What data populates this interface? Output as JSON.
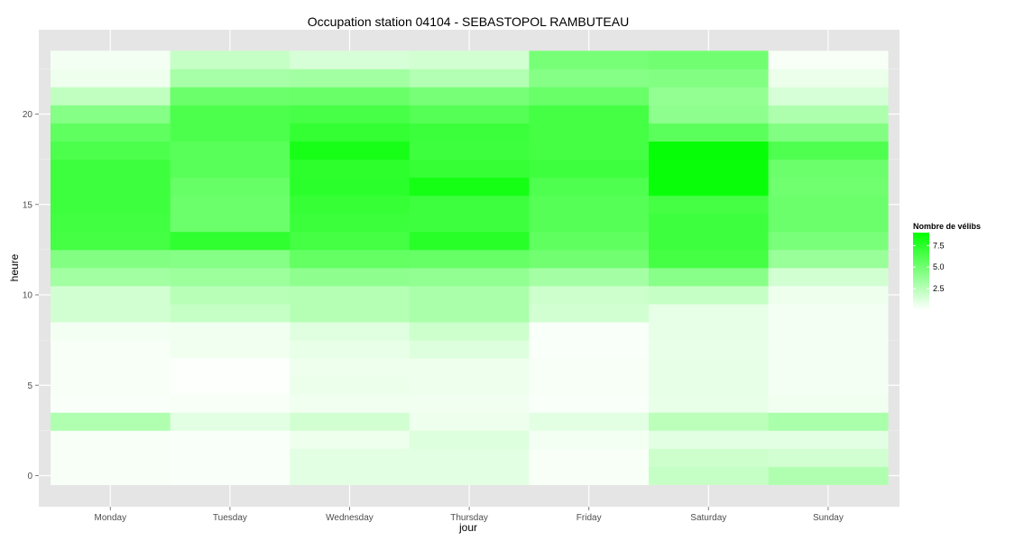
{
  "chart_data": {
    "type": "heatmap",
    "title": "Occupation station 04104 - SEBASTOPOL RAMBUTEAU",
    "xlabel": "jour",
    "ylabel": "heure",
    "x_categories": [
      "Monday",
      "Tuesday",
      "Wednesday",
      "Thursday",
      "Friday",
      "Saturday",
      "Sunday"
    ],
    "y_range": [
      0,
      23
    ],
    "y_ticks": [
      0,
      5,
      10,
      15,
      20
    ],
    "legend": {
      "title": "Nombre de vélibs",
      "ticks": [
        2.5,
        5.0,
        7.5
      ],
      "range": [
        0,
        9
      ],
      "low_color": "#ffffff",
      "high_color": "#00ff00",
      "position": "right"
    },
    "grid": true,
    "panel_background": "#e5e5e5",
    "values": [
      [
        0.3,
        0.2,
        1.0,
        1.0,
        0.3,
        2.0,
        2.8
      ],
      [
        0.3,
        0.2,
        1.0,
        1.0,
        0.3,
        1.8,
        1.6
      ],
      [
        0.3,
        0.2,
        0.6,
        1.2,
        0.4,
        1.0,
        1.0
      ],
      [
        2.8,
        1.0,
        1.6,
        0.6,
        1.0,
        2.4,
        3.0
      ],
      [
        0.2,
        0.3,
        0.5,
        0.5,
        0.2,
        0.8,
        0.5
      ],
      [
        0.3,
        0.1,
        0.7,
        0.6,
        0.3,
        0.9,
        0.4
      ],
      [
        0.3,
        0.1,
        0.6,
        0.6,
        0.3,
        0.9,
        0.4
      ],
      [
        0.3,
        0.5,
        0.8,
        1.2,
        0.2,
        0.8,
        0.4
      ],
      [
        0.4,
        0.5,
        1.1,
        1.8,
        0.2,
        0.9,
        0.4
      ],
      [
        1.6,
        2.0,
        2.6,
        3.0,
        1.6,
        0.9,
        0.4
      ],
      [
        1.6,
        2.5,
        2.6,
        3.0,
        1.8,
        2.0,
        0.6
      ],
      [
        3.3,
        3.5,
        4.0,
        3.9,
        3.2,
        4.2,
        1.6
      ],
      [
        4.4,
        4.3,
        5.5,
        5.4,
        5.0,
        6.6,
        3.6
      ],
      [
        6.6,
        7.3,
        6.6,
        7.6,
        5.7,
        6.8,
        4.7
      ],
      [
        6.7,
        5.2,
        6.9,
        6.8,
        6.0,
        6.8,
        5.2
      ],
      [
        6.8,
        5.2,
        7.1,
        6.8,
        6.0,
        6.6,
        5.2
      ],
      [
        6.8,
        5.4,
        7.5,
        8.3,
        6.2,
        8.7,
        5.1
      ],
      [
        6.8,
        5.9,
        7.4,
        7.1,
        6.8,
        8.7,
        5.2
      ],
      [
        6.3,
        5.9,
        8.2,
        6.8,
        6.6,
        8.8,
        6.2
      ],
      [
        5.6,
        6.3,
        7.2,
        6.9,
        6.6,
        5.8,
        4.4
      ],
      [
        4.3,
        6.3,
        6.5,
        6.0,
        6.6,
        4.0,
        2.9
      ],
      [
        2.2,
        5.2,
        5.3,
        4.8,
        5.3,
        3.8,
        1.4
      ],
      [
        0.6,
        3.1,
        3.3,
        2.7,
        4.3,
        4.4,
        0.7
      ],
      [
        0.4,
        2.0,
        1.4,
        1.6,
        4.8,
        5.0,
        0.3
      ]
    ]
  }
}
